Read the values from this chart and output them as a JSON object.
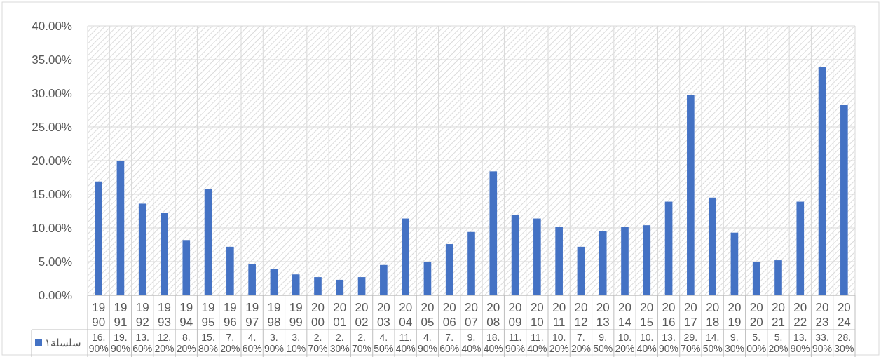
{
  "chart_data": {
    "type": "bar",
    "categories": [
      "1990",
      "1991",
      "1992",
      "1993",
      "1994",
      "1995",
      "1996",
      "1997",
      "1998",
      "1999",
      "2000",
      "2001",
      "2002",
      "2003",
      "2004",
      "2005",
      "2006",
      "2007",
      "2008",
      "2009",
      "2010",
      "2011",
      "2012",
      "2013",
      "2014",
      "2015",
      "2016",
      "2017",
      "2018",
      "2019",
      "2020",
      "2021",
      "2022",
      "2023",
      "2024"
    ],
    "series": [
      {
        "name": "سلسلة١",
        "color": "#4472c4",
        "values": [
          16.9,
          19.9,
          13.6,
          12.2,
          8.2,
          15.8,
          7.2,
          4.6,
          3.9,
          3.1,
          2.7,
          2.3,
          2.7,
          4.5,
          11.4,
          4.9,
          7.6,
          9.4,
          18.4,
          11.9,
          11.4,
          10.2,
          7.2,
          9.5,
          10.2,
          10.4,
          13.9,
          29.7,
          14.5,
          9.3,
          5.0,
          5.2,
          13.9,
          33.9,
          28.3
        ],
        "value_labels": [
          "16.90%",
          "19.90%",
          "13.60%",
          "12.20%",
          "8.20%",
          "15.80%",
          "7.20%",
          "4.60%",
          "3.90%",
          "3.10%",
          "2.70%",
          "2.30%",
          "2.70%",
          "4.50%",
          "11.40%",
          "4.90%",
          "7.60%",
          "9.40%",
          "18.40%",
          "11.90%",
          "11.40%",
          "10.20%",
          "7.20%",
          "9.50%",
          "10.20%",
          "10.40%",
          "13.90%",
          "29.70%",
          "14.50%",
          "9.30%",
          "5.00%",
          "5.20%",
          "13.90%",
          "33.90%",
          "28.30%"
        ]
      }
    ],
    "ylim": [
      0,
      40
    ],
    "yticks": [
      {
        "value": 0,
        "label": "0.00%"
      },
      {
        "value": 5,
        "label": "5.00%"
      },
      {
        "value": 10,
        "label": "10.00%"
      },
      {
        "value": 15,
        "label": "15.00%"
      },
      {
        "value": 20,
        "label": "20.00%"
      },
      {
        "value": 25,
        "label": "25.00%"
      },
      {
        "value": 30,
        "label": "30.00%"
      },
      {
        "value": 35,
        "label": "35.00%"
      },
      {
        "value": 40,
        "label": "40.00%"
      }
    ],
    "grid": true,
    "legend": "bottom"
  }
}
